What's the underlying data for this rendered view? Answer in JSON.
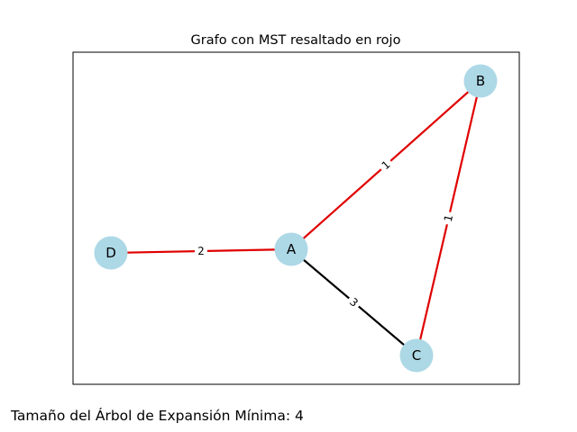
{
  "title": "Grafo con MST resaltado en rojo",
  "footer_text": "Tamaño del Árbol de Expansión Mínima: 4",
  "colors": {
    "node_fill": "#add8e6",
    "mst_edge": "#e00000",
    "edge": "#000000",
    "frame": "#000000"
  },
  "nodes": [
    {
      "id": "A",
      "label": "A"
    },
    {
      "id": "B",
      "label": "B"
    },
    {
      "id": "C",
      "label": "C"
    },
    {
      "id": "D",
      "label": "D"
    }
  ],
  "edges": [
    {
      "from": "A",
      "to": "B",
      "weight": "1",
      "in_mst": true
    },
    {
      "from": "B",
      "to": "C",
      "weight": "1",
      "in_mst": true
    },
    {
      "from": "D",
      "to": "A",
      "weight": "2",
      "in_mst": true
    },
    {
      "from": "A",
      "to": "C",
      "weight": "3",
      "in_mst": false
    }
  ]
}
